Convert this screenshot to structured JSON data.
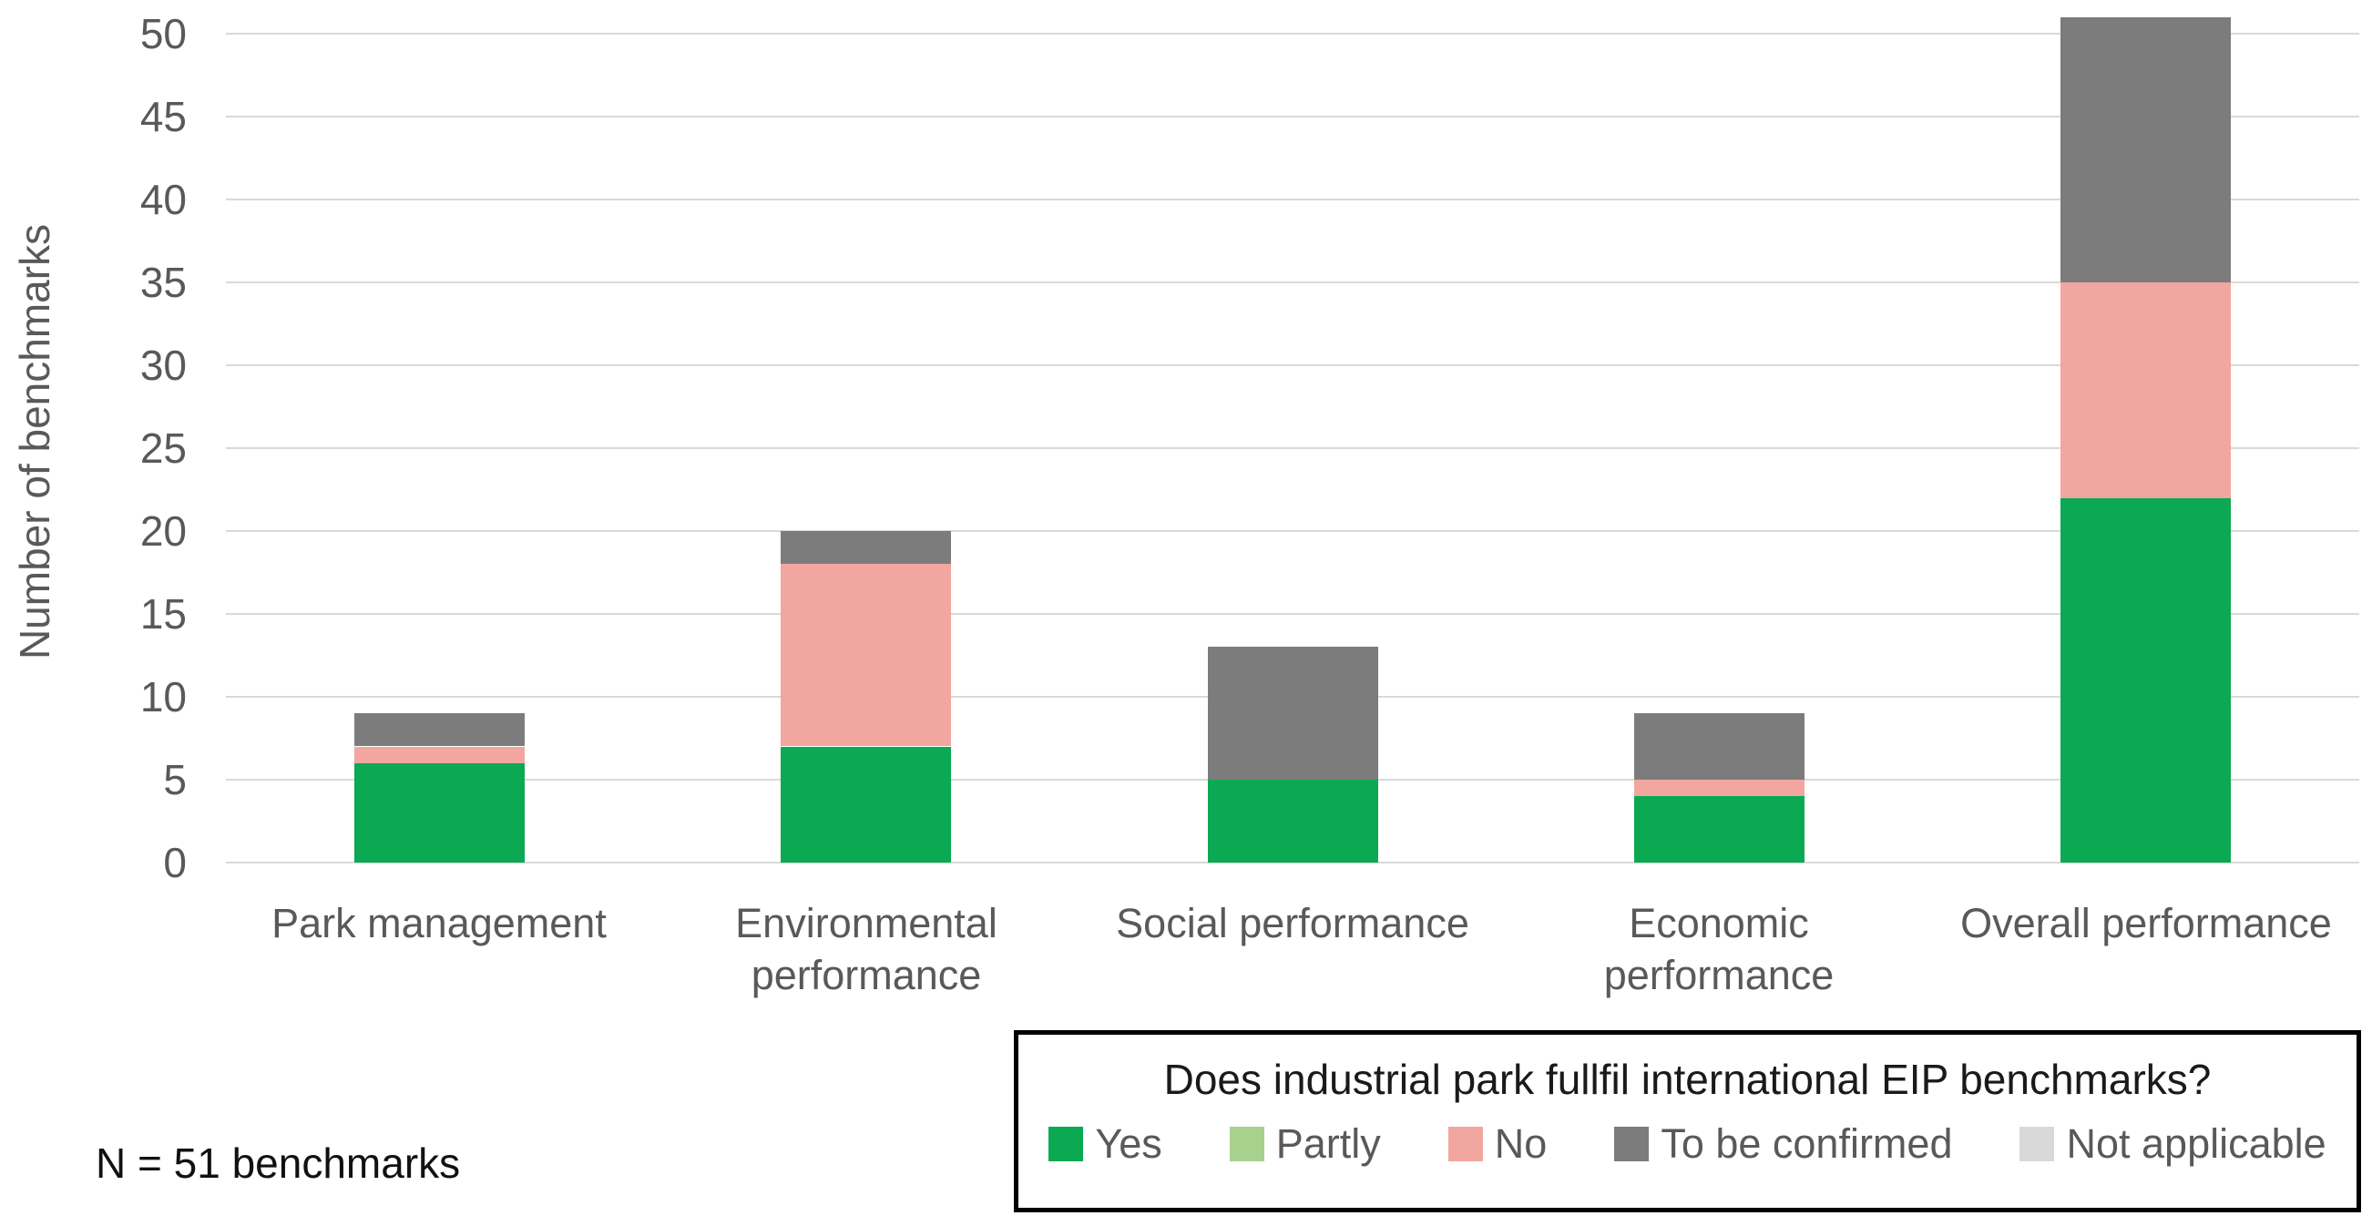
{
  "note": "N = 51 benchmarks",
  "chart_data": {
    "type": "bar",
    "stacked": true,
    "title": "",
    "xlabel": "",
    "ylabel": "Number of benchmarks",
    "ylim": [
      0,
      50
    ],
    "ytick_step": 5,
    "grid": true,
    "categories": [
      "Park management",
      "Environmental performance",
      "Social performance",
      "Economic performance",
      "Overall performance"
    ],
    "series": [
      {
        "name": "Yes",
        "color": "#0aa952",
        "values": [
          6,
          7,
          5,
          4,
          22
        ]
      },
      {
        "name": "Partly",
        "color": "#a9d18e",
        "values": [
          0,
          0,
          0,
          0,
          0
        ]
      },
      {
        "name": "No",
        "color": "#f2a6a0",
        "values": [
          1,
          11,
          0,
          1,
          13
        ]
      },
      {
        "name": "To be confirmed",
        "color": "#7c7c7c",
        "values": [
          2,
          2,
          8,
          4,
          16
        ]
      },
      {
        "name": "Not applicable",
        "color": "#d9d9d9",
        "values": [
          0,
          0,
          0,
          0,
          0
        ]
      }
    ],
    "totals": [
      9,
      20,
      13,
      9,
      51
    ],
    "legend": {
      "title": "Does industrial park fullfil international EIP benchmarks?",
      "position": "bottom-right"
    },
    "colors": {
      "gridline": "#d9d9d9",
      "axis_text": "#595959",
      "note_text": "#111111",
      "legend_border": "#000000"
    }
  }
}
